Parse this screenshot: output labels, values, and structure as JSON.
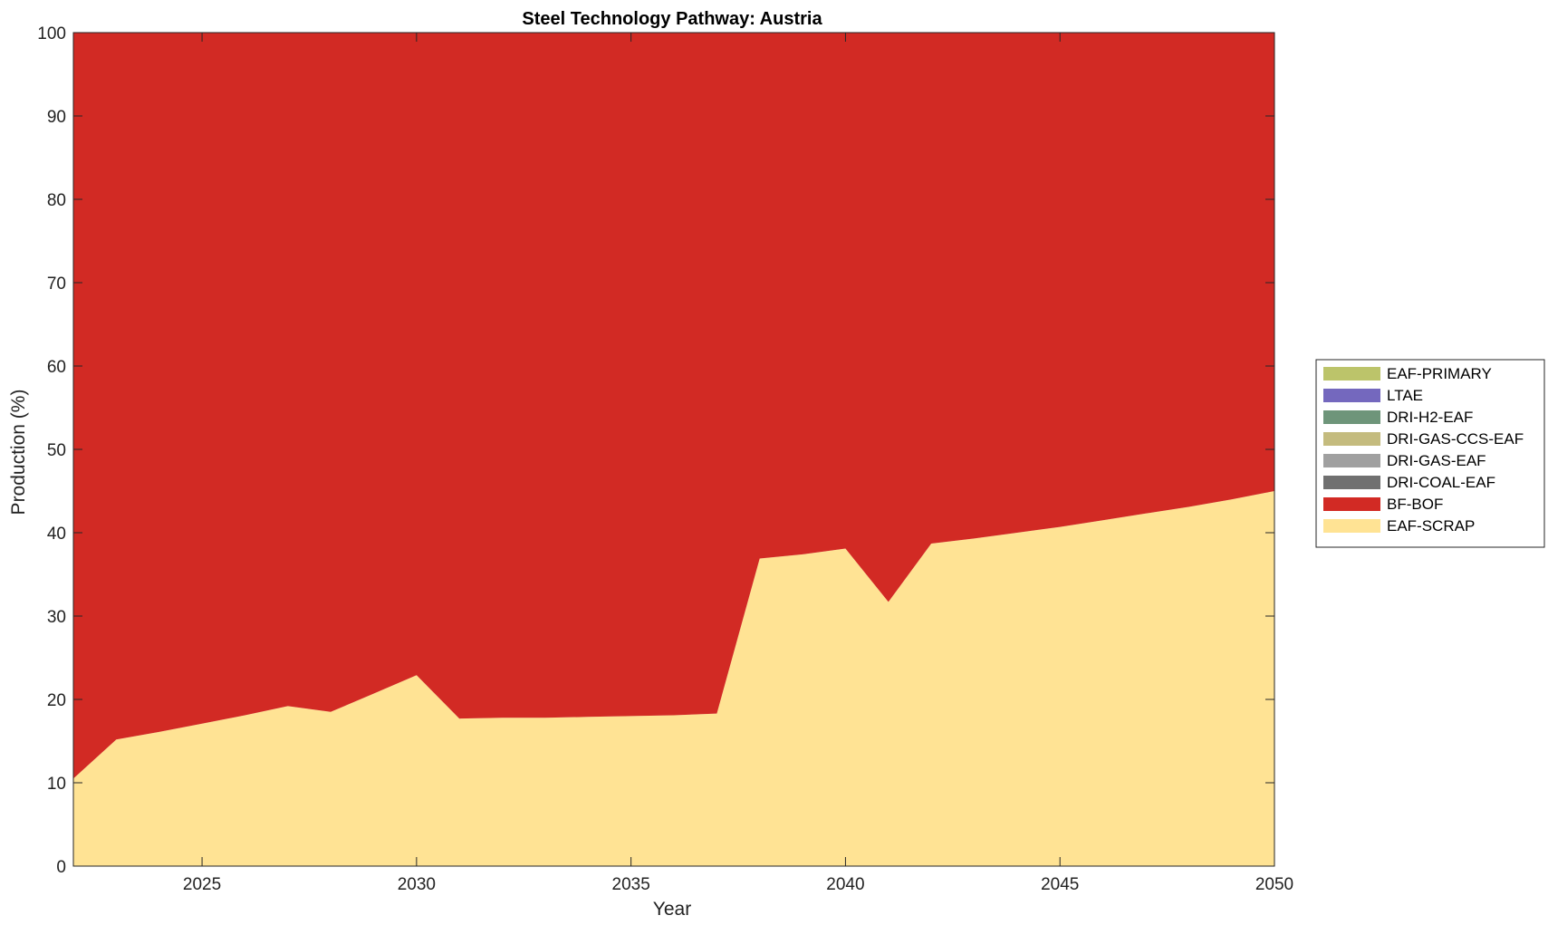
{
  "chart_data": {
    "type": "area",
    "stacked": true,
    "title": "Steel Technology Pathway: Austria",
    "xlabel": "Year",
    "ylabel": "Production (%)",
    "xlim": [
      2022,
      2050
    ],
    "ylim": [
      0,
      100
    ],
    "xticks": [
      2025,
      2030,
      2035,
      2040,
      2045,
      2050
    ],
    "yticks": [
      0,
      10,
      20,
      30,
      40,
      50,
      60,
      70,
      80,
      90,
      100
    ],
    "grid": false,
    "legend_position": "right",
    "x": [
      2022,
      2023,
      2024,
      2025,
      2026,
      2027,
      2028,
      2029,
      2030,
      2031,
      2032,
      2033,
      2034,
      2035,
      2036,
      2037,
      2038,
      2039,
      2040,
      2041,
      2042,
      2043,
      2044,
      2045,
      2046,
      2047,
      2048,
      2049,
      2050
    ],
    "series": [
      {
        "name": "EAF-SCRAP",
        "color": "#FFE394",
        "values": [
          10.5,
          15.2,
          16.1,
          17.1,
          18.1,
          19.2,
          18.5,
          20.7,
          22.9,
          17.7,
          17.8,
          17.8,
          17.9,
          18.0,
          18.1,
          18.3,
          36.9,
          37.4,
          38.1,
          31.7,
          38.7,
          39.3,
          40.0,
          40.7,
          41.5,
          42.3,
          43.1,
          44.0,
          45.0
        ]
      },
      {
        "name": "BF-BOF",
        "color": "#D22A24",
        "values": [
          89.5,
          84.8,
          83.9,
          82.9,
          81.9,
          80.8,
          81.5,
          79.3,
          77.1,
          82.3,
          82.2,
          82.2,
          82.1,
          82.0,
          81.9,
          81.7,
          63.1,
          62.6,
          61.9,
          68.3,
          61.3,
          60.7,
          60.0,
          59.3,
          58.5,
          57.7,
          56.9,
          56.0,
          55.0
        ]
      },
      {
        "name": "DRI-COAL-EAF",
        "color": "#707070",
        "values": [
          0,
          0,
          0,
          0,
          0,
          0,
          0,
          0,
          0,
          0,
          0,
          0,
          0,
          0,
          0,
          0,
          0,
          0,
          0,
          0,
          0,
          0,
          0,
          0,
          0,
          0,
          0,
          0,
          0
        ]
      },
      {
        "name": "DRI-GAS-EAF",
        "color": "#A0A0A0",
        "values": [
          0,
          0,
          0,
          0,
          0,
          0,
          0,
          0,
          0,
          0,
          0,
          0,
          0,
          0,
          0,
          0,
          0,
          0,
          0,
          0,
          0,
          0,
          0,
          0,
          0,
          0,
          0,
          0,
          0
        ]
      },
      {
        "name": "DRI-GAS-CCS-EAF",
        "color": "#C4BB7E",
        "values": [
          0,
          0,
          0,
          0,
          0,
          0,
          0,
          0,
          0,
          0,
          0,
          0,
          0,
          0,
          0,
          0,
          0,
          0,
          0,
          0,
          0,
          0,
          0,
          0,
          0,
          0,
          0,
          0,
          0
        ]
      },
      {
        "name": "DRI-H2-EAF",
        "color": "#6E957A",
        "values": [
          0,
          0,
          0,
          0,
          0,
          0,
          0,
          0,
          0,
          0,
          0,
          0,
          0,
          0,
          0,
          0,
          0,
          0,
          0,
          0,
          0,
          0,
          0,
          0,
          0,
          0,
          0,
          0,
          0
        ]
      },
      {
        "name": "LTAE",
        "color": "#7468BE",
        "values": [
          0,
          0,
          0,
          0,
          0,
          0,
          0,
          0,
          0,
          0,
          0,
          0,
          0,
          0,
          0,
          0,
          0,
          0,
          0,
          0,
          0,
          0,
          0,
          0,
          0,
          0,
          0,
          0,
          0
        ]
      },
      {
        "name": "EAF-PRIMARY",
        "color": "#BCC46A",
        "values": [
          0,
          0,
          0,
          0,
          0,
          0,
          0,
          0,
          0,
          0,
          0,
          0,
          0,
          0,
          0,
          0,
          0,
          0,
          0,
          0,
          0,
          0,
          0,
          0,
          0,
          0,
          0,
          0,
          0
        ]
      }
    ],
    "legend": [
      "EAF-PRIMARY",
      "LTAE",
      "DRI-H2-EAF",
      "DRI-GAS-CCS-EAF",
      "DRI-GAS-EAF",
      "DRI-COAL-EAF",
      "BF-BOF",
      "EAF-SCRAP"
    ]
  }
}
